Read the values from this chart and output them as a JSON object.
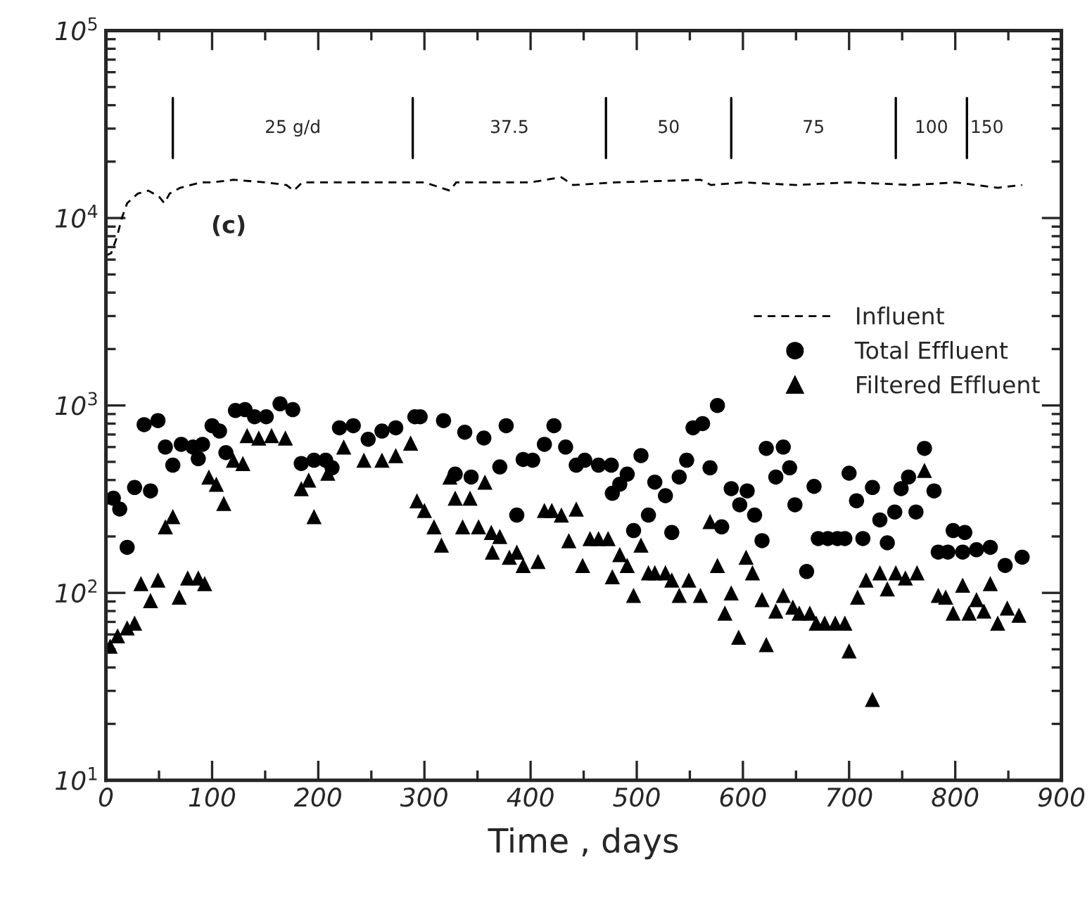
{
  "chart_data": {
    "type": "scatter",
    "xlabel": "Time , days",
    "xlim": [
      0,
      900
    ],
    "xticks": [
      0,
      100,
      200,
      300,
      400,
      500,
      600,
      700,
      800,
      900
    ],
    "log": true,
    "ylim": [
      10,
      100000
    ],
    "yticks": [
      {
        "value": 10,
        "label": "10$^{1}$"
      },
      {
        "value": 100,
        "label": "10$^{2}$"
      },
      {
        "value": 1000,
        "label": "10$^{3}$"
      },
      {
        "value": 10000,
        "label": "10$^{4}$"
      },
      {
        "value": 100000,
        "label": "10$^{5}$"
      }
    ],
    "grid": false,
    "legend": "upper right",
    "annotations": [
      "(c)",
      "25 g/d",
      "37.5",
      "50",
      "75",
      "100",
      "150"
    ],
    "ref_lines": [
      {
        "axis": "x",
        "value": 63
      },
      {
        "axis": "x",
        "value": 289
      },
      {
        "axis": "x",
        "value": 471
      },
      {
        "axis": "x",
        "value": 589
      },
      {
        "axis": "x",
        "value": 744
      },
      {
        "axis": "x",
        "value": 811
      }
    ],
    "series": [
      {
        "name": "Influent",
        "type": "line",
        "line_style": "dashed",
        "marker": "none",
        "color": "#000000",
        "x": [
          0,
          5,
          10,
          15,
          20,
          30,
          40,
          50,
          55,
          60,
          70,
          80,
          90,
          100,
          120,
          150,
          170,
          177,
          185,
          250,
          300,
          324,
          330,
          400,
          429,
          440,
          480,
          560,
          570,
          600,
          650,
          700,
          760,
          800,
          840,
          863
        ],
        "values": [
          6300,
          6500,
          7800,
          10000,
          12000,
          13500,
          14000,
          13000,
          12000,
          13500,
          14500,
          15000,
          15500,
          15500,
          16000,
          15500,
          15000,
          14000,
          15500,
          15500,
          15500,
          14000,
          15500,
          15500,
          16500,
          15000,
          15500,
          16000,
          15000,
          15500,
          15000,
          15500,
          15000,
          15500,
          14500,
          15000
        ]
      },
      {
        "name": "Total Effluent",
        "marker": "circle",
        "color": "#000000",
        "x": [
          7,
          13,
          20,
          27,
          36,
          42,
          49,
          56,
          63,
          71,
          82,
          87,
          91,
          100,
          107,
          113,
          122,
          131,
          140,
          151,
          164,
          176,
          184,
          196,
          207,
          213,
          220,
          233,
          247,
          260,
          273,
          291,
          296,
          318,
          329,
          338,
          344,
          356,
          371,
          377,
          387,
          393,
          402,
          413,
          422,
          433,
          443,
          451,
          464,
          476,
          477,
          484,
          491,
          497,
          504,
          511,
          517,
          527,
          533,
          540,
          547,
          553,
          562,
          569,
          576,
          580,
          589,
          597,
          604,
          611,
          618,
          622,
          631,
          638,
          644,
          649,
          660,
          667,
          671,
          680,
          689,
          696,
          700,
          707,
          713,
          722,
          729,
          736,
          743,
          749,
          756,
          763,
          771,
          780,
          784,
          793,
          798,
          807,
          809,
          820,
          833,
          847,
          863
        ],
        "values": [
          320,
          280,
          175,
          365,
          790,
          350,
          830,
          600,
          480,
          620,
          600,
          520,
          620,
          780,
          730,
          560,
          940,
          950,
          870,
          870,
          1020,
          950,
          490,
          510,
          510,
          465,
          760,
          780,
          660,
          730,
          760,
          870,
          870,
          830,
          430,
          720,
          415,
          670,
          470,
          780,
          260,
          515,
          510,
          620,
          780,
          600,
          480,
          510,
          480,
          480,
          340,
          380,
          430,
          215,
          540,
          260,
          390,
          330,
          210,
          415,
          510,
          760,
          800,
          465,
          1000,
          225,
          360,
          295,
          350,
          260,
          190,
          590,
          415,
          600,
          465,
          295,
          130,
          370,
          195,
          195,
          195,
          195,
          435,
          310,
          195,
          365,
          245,
          185,
          270,
          360,
          415,
          270,
          590,
          350,
          165,
          165,
          215,
          165,
          210,
          170,
          175,
          140,
          155
        ]
      },
      {
        "name": "Filtered Effluent",
        "marker": "triangle",
        "color": "#000000",
        "x": [
          4,
          11,
          20,
          27,
          33,
          42,
          49,
          56,
          63,
          69,
          77,
          87,
          93,
          97,
          104,
          111,
          120,
          129,
          133,
          144,
          156,
          169,
          184,
          191,
          196,
          209,
          224,
          243,
          260,
          273,
          287,
          293,
          300,
          309,
          316,
          324,
          329,
          336,
          343,
          351,
          357,
          363,
          364,
          371,
          380,
          387,
          393,
          407,
          413,
          420,
          429,
          436,
          443,
          449,
          456,
          464,
          473,
          477,
          484,
          491,
          497,
          504,
          511,
          517,
          527,
          533,
          540,
          549,
          560,
          569,
          576,
          583,
          589,
          596,
          603,
          609,
          618,
          622,
          631,
          638,
          647,
          653,
          663,
          669,
          677,
          687,
          696,
          700,
          708,
          716,
          722,
          729,
          736,
          744,
          753,
          764,
          771,
          784,
          791,
          798,
          807,
          813,
          820,
          827,
          833,
          840,
          849,
          860
        ],
        "values": [
          52,
          59,
          65,
          69,
          112,
          91,
          117,
          225,
          255,
          95,
          120,
          120,
          112,
          415,
          380,
          300,
          510,
          490,
          690,
          670,
          690,
          670,
          360,
          400,
          255,
          435,
          600,
          510,
          510,
          540,
          630,
          310,
          275,
          225,
          180,
          415,
          320,
          225,
          320,
          225,
          390,
          210,
          165,
          200,
          155,
          165,
          140,
          147,
          275,
          275,
          260,
          190,
          280,
          140,
          195,
          195,
          195,
          122,
          160,
          140,
          97,
          180,
          128,
          128,
          128,
          117,
          97,
          117,
          97,
          240,
          140,
          78,
          100,
          58,
          155,
          128,
          92,
          53,
          80,
          97,
          84,
          78,
          78,
          69,
          69,
          69,
          69,
          49,
          95,
          117,
          27,
          128,
          105,
          128,
          120,
          128,
          450,
          97,
          95,
          78,
          110,
          78,
          92,
          80,
          112,
          69,
          83,
          76
        ]
      }
    ]
  }
}
